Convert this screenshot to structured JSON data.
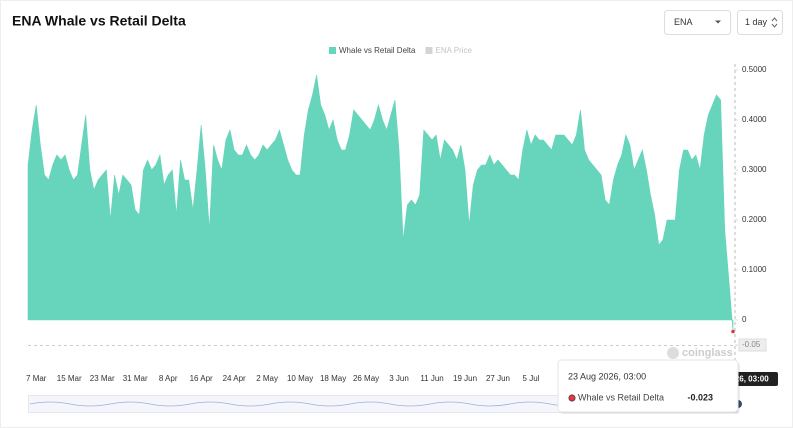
{
  "chart_data": {
    "type": "area",
    "title": "ENA Whale vs Retail Delta",
    "controls": {
      "symbol": "ENA",
      "interval": "1 day"
    },
    "watermark": "coinglass",
    "inactive_legend": {
      "name": "ENA Price",
      "color": "#d4d4d4"
    },
    "categories": [
      null,
      null,
      "7 Mar",
      null,
      null,
      null,
      null,
      null,
      null,
      null,
      "15 Mar",
      null,
      null,
      null,
      null,
      null,
      null,
      null,
      "23 Mar",
      null,
      null,
      null,
      null,
      null,
      null,
      null,
      "31 Mar",
      null,
      null,
      null,
      null,
      null,
      null,
      null,
      "8 Apr",
      null,
      null,
      null,
      null,
      null,
      null,
      null,
      "16 Apr",
      null,
      null,
      null,
      null,
      null,
      null,
      null,
      "24 Apr",
      null,
      null,
      null,
      null,
      null,
      null,
      null,
      "2 May",
      null,
      null,
      null,
      null,
      null,
      null,
      null,
      "10 May",
      null,
      null,
      null,
      null,
      null,
      null,
      null,
      "18 May",
      null,
      null,
      null,
      null,
      null,
      null,
      null,
      "26 May",
      null,
      null,
      null,
      null,
      null,
      null,
      null,
      "3 Jun",
      null,
      null,
      null,
      null,
      null,
      null,
      null,
      "11 Jun",
      null,
      null,
      null,
      null,
      null,
      null,
      null,
      "19 Jun",
      null,
      null,
      null,
      null,
      null,
      null,
      null,
      "27 Jun",
      null,
      null,
      null,
      null,
      null,
      null,
      null,
      "5 Jul",
      null,
      null,
      null,
      null,
      null,
      null,
      null,
      null,
      null,
      null,
      null,
      null,
      null,
      null,
      null,
      null,
      null,
      null,
      null,
      null,
      null,
      null,
      null,
      null,
      null,
      null,
      null,
      null,
      null,
      null,
      null,
      null,
      null,
      null,
      null,
      null,
      null,
      null,
      null,
      null,
      null,
      null,
      null,
      null,
      null,
      null,
      null,
      null,
      null
    ],
    "series": [
      {
        "name": "Whale vs Retail Delta",
        "color": "#67d4bc",
        "values": [
          0.31,
          0.38,
          0.43,
          0.35,
          0.29,
          0.28,
          0.31,
          0.33,
          0.32,
          0.33,
          0.3,
          0.28,
          0.29,
          0.35,
          0.41,
          0.3,
          0.26,
          0.28,
          0.29,
          0.3,
          0.2,
          0.29,
          0.25,
          0.29,
          0.28,
          0.27,
          0.22,
          0.21,
          0.3,
          0.32,
          0.3,
          0.31,
          0.33,
          0.27,
          0.29,
          0.3,
          0.21,
          0.32,
          0.28,
          0.28,
          0.22,
          0.3,
          0.39,
          0.3,
          0.18,
          0.35,
          0.32,
          0.3,
          0.36,
          0.38,
          0.34,
          0.33,
          0.33,
          0.35,
          0.33,
          0.32,
          0.33,
          0.35,
          0.34,
          0.35,
          0.36,
          0.38,
          0.35,
          0.32,
          0.3,
          0.29,
          0.29,
          0.37,
          0.42,
          0.45,
          0.49,
          0.43,
          0.41,
          0.38,
          0.4,
          0.36,
          0.34,
          0.34,
          0.37,
          0.42,
          0.41,
          0.4,
          0.39,
          0.38,
          0.4,
          0.43,
          0.4,
          0.38,
          0.41,
          0.44,
          0.34,
          0.16,
          0.23,
          0.24,
          0.23,
          0.25,
          0.38,
          0.37,
          0.36,
          0.37,
          0.32,
          0.36,
          0.35,
          0.34,
          0.32,
          0.35,
          0.3,
          0.19,
          0.27,
          0.3,
          0.31,
          0.31,
          0.33,
          0.31,
          0.32,
          0.31,
          0.3,
          0.29,
          0.29,
          0.28,
          0.34,
          0.38,
          0.35,
          0.37,
          0.36,
          0.36,
          0.35,
          0.34,
          0.37,
          0.37,
          0.37,
          0.36,
          0.35,
          0.37,
          0.42,
          0.34,
          0.32,
          0.31,
          0.3,
          0.29,
          0.24,
          0.23,
          0.28,
          0.31,
          0.33,
          0.37,
          0.35,
          0.3,
          0.32,
          0.34,
          0.3,
          0.25,
          0.21,
          0.15,
          0.16,
          0.2,
          0.2,
          0.2,
          0.3,
          0.34,
          0.34,
          0.32,
          0.33,
          0.3,
          0.37,
          0.41,
          0.43,
          0.45,
          0.44,
          0.18,
          0.08,
          -0.023
        ]
      }
    ],
    "ylim": [
      -0.05,
      0.5
    ],
    "yticks": [
      {
        "value": 0.5,
        "label": "0.5000"
      },
      {
        "value": 0.4,
        "label": "0.4000"
      },
      {
        "value": 0.3,
        "label": "0.3000"
      },
      {
        "value": 0.2,
        "label": "0.2000"
      },
      {
        "value": 0.1,
        "label": "0.1000"
      },
      0,
      -0.05
    ],
    "grid": false,
    "tooltip": {
      "date": "23 Aug 2026, 03:00",
      "series": "Whale vs Retail Delta",
      "value": -0.023,
      "color": "#e0393e"
    }
  }
}
